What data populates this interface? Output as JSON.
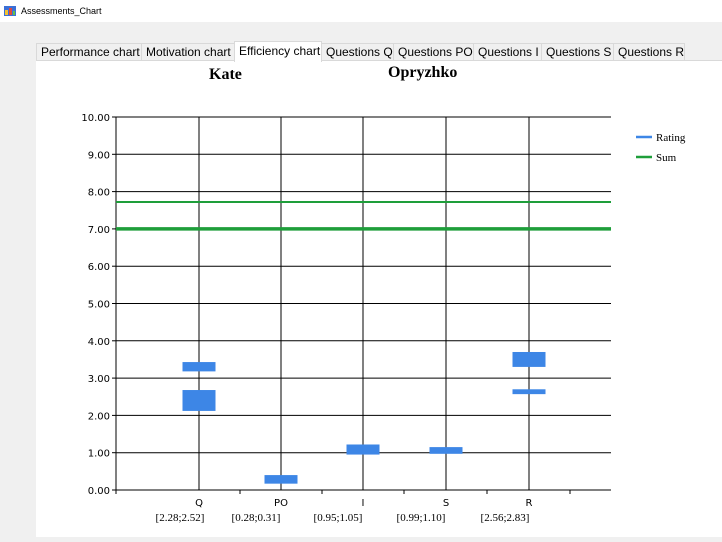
{
  "window": {
    "title": "Assessments_Chart",
    "icon": "chart-app-icon"
  },
  "tabs": [
    {
      "label": "Performance chart",
      "active": false
    },
    {
      "label": "Motivation chart",
      "active": false
    },
    {
      "label": "Efficiency chart",
      "active": true
    },
    {
      "label": "Questions Q",
      "active": false
    },
    {
      "label": "Questions PO",
      "active": false
    },
    {
      "label": "Questions I",
      "active": false
    },
    {
      "label": "Questions S",
      "active": false
    },
    {
      "label": "Questions R",
      "active": false
    }
  ],
  "chart": {
    "first_name": "Kate",
    "last_name": "Opryzhko"
  },
  "chart_data": {
    "type": "bar",
    "categories": [
      "Q",
      "PO",
      "I",
      "S",
      "R"
    ],
    "range_labels": [
      "[2.28;2.52]",
      "[0.28;0.31]",
      "[0.95;1.05]",
      "[0.99;1.10]",
      "[2.56;2.83]"
    ],
    "rating_ranges": [
      [
        [
          3.18,
          3.43
        ],
        [
          2.12,
          2.68
        ]
      ],
      [
        [
          0.17,
          0.4
        ]
      ],
      [
        [
          0.95,
          1.22
        ]
      ],
      [
        [
          0.97,
          1.15
        ]
      ],
      [
        [
          3.3,
          3.7
        ],
        [
          2.57,
          2.7
        ]
      ]
    ],
    "sum_lines": [
      7.72,
      7.02,
      6.98
    ],
    "ylim": [
      0,
      10
    ],
    "yticks": [
      "0.00",
      "1.00",
      "2.00",
      "3.00",
      "4.00",
      "5.00",
      "6.00",
      "7.00",
      "8.00",
      "9.00",
      "10.00"
    ],
    "grid": true,
    "legend": {
      "placement": "top-right",
      "entries": [
        {
          "name": "Rating",
          "color": "#3d86e6"
        },
        {
          "name": "Sum",
          "color": "#1e9e3a"
        }
      ]
    }
  }
}
